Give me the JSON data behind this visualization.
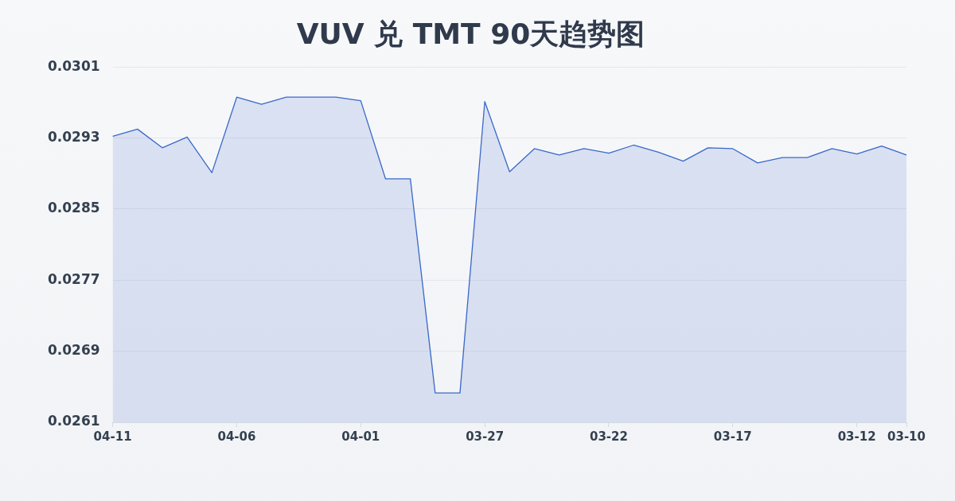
{
  "chart_data": {
    "type": "area",
    "title": "VUV 兑 TMT 90天趋势图",
    "categories": [
      "04-11",
      null,
      null,
      null,
      null,
      "04-06",
      null,
      null,
      null,
      null,
      "04-01",
      null,
      null,
      null,
      null,
      "03-27",
      null,
      null,
      null,
      null,
      "03-22",
      null,
      null,
      null,
      null,
      "03-17",
      null,
      null,
      null,
      null,
      "03-12",
      null,
      "03-10"
    ],
    "values": [
      0.02932,
      0.0294,
      0.02919,
      0.02931,
      0.02891,
      0.02976,
      0.02968,
      0.02976,
      0.02976,
      0.02976,
      0.02972,
      0.02884,
      0.02884,
      0.02643,
      0.02643,
      0.02971,
      0.02892,
      0.02918,
      0.02911,
      0.02918,
      0.02913,
      0.02922,
      0.02914,
      0.02904,
      0.02919,
      0.02918,
      0.02902,
      0.02908,
      0.02908,
      0.02918,
      0.02912,
      0.02921,
      0.02911
    ],
    "color": "#3a68c8",
    "ylim": [
      0.0261,
      0.0301
    ],
    "yticks": [
      0.0261,
      0.0269,
      0.0277,
      0.0285,
      0.0293,
      0.0301
    ],
    "grid": "y",
    "legend": false,
    "marker": "none",
    "line_style": "solid"
  }
}
